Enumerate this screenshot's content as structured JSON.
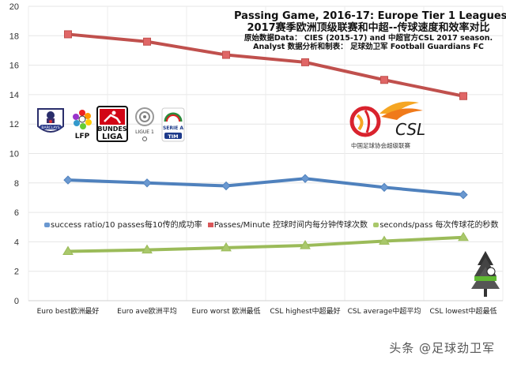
{
  "title": {
    "line1": "Passing Game, 2016-17: Europe Tier 1 Leagues vs China",
    "line2": "2017赛季欧洲顶级联赛和中超--传球速度和效率对比",
    "line3": "原始数据Data： CIES (2015-17) and 中超官方CSL 2017 season.",
    "line4": "Analyst 数据分析和制表： 足球劲卫军 Football Guardians FC"
  },
  "legend": [
    {
      "label": "success ratio/10 passes每10传的成功率",
      "color": "#4f81bd"
    },
    {
      "label": "Passes/Minute 控球时间内每分钟传球次数",
      "color": "#c0504d"
    },
    {
      "label": "seconds/pass 每次传球花的秒数",
      "color": "#9bbb59"
    }
  ],
  "logos": {
    "premier_league": "BARCLAYS",
    "lfp": "LFP",
    "bundesliga_line1": "BUNDES",
    "bundesliga_line2": "LIGA",
    "ligue1": "LIGUE 1",
    "serie_a": "SERIE A",
    "serie_a_sponsor": "TIM",
    "csl": "CSL",
    "csl_caption": "中国足球协会超级联赛"
  },
  "watermark": "头条 @足球劲卫军",
  "chart_data": {
    "type": "line",
    "title": "Passing Game, 2016-17: Europe Tier 1 Leagues vs China",
    "categories": [
      "Euro best欧洲最好",
      "Euro ave欧洲平均",
      "Euro worst 欧洲最低",
      "CSL highest中超最好",
      "CSL average中超平均",
      "CSL lowest中超最低"
    ],
    "series": [
      {
        "name": "success ratio/10 passes每10传的成功率",
        "color": "#4f81bd",
        "marker": "diamond",
        "values": [
          8.2,
          8.0,
          7.8,
          8.3,
          7.7,
          7.2
        ]
      },
      {
        "name": "Passes/Minute 控球时间内每分钟传球次数",
        "color": "#c0504d",
        "marker": "square",
        "values": [
          18.1,
          17.6,
          16.7,
          16.2,
          15.0,
          13.9
        ]
      },
      {
        "name": "seconds/pass 每次传球花的秒数",
        "color": "#9bbb59",
        "marker": "triangle",
        "values": [
          3.35,
          3.45,
          3.6,
          3.75,
          4.05,
          4.3
        ]
      }
    ],
    "yticks": [
      0,
      2,
      4,
      6,
      8,
      10,
      12,
      14,
      16,
      18,
      20
    ],
    "ylim": [
      0,
      20
    ],
    "xlabel": "",
    "ylabel": "",
    "grid": true,
    "legend_position": "inside-middle"
  }
}
